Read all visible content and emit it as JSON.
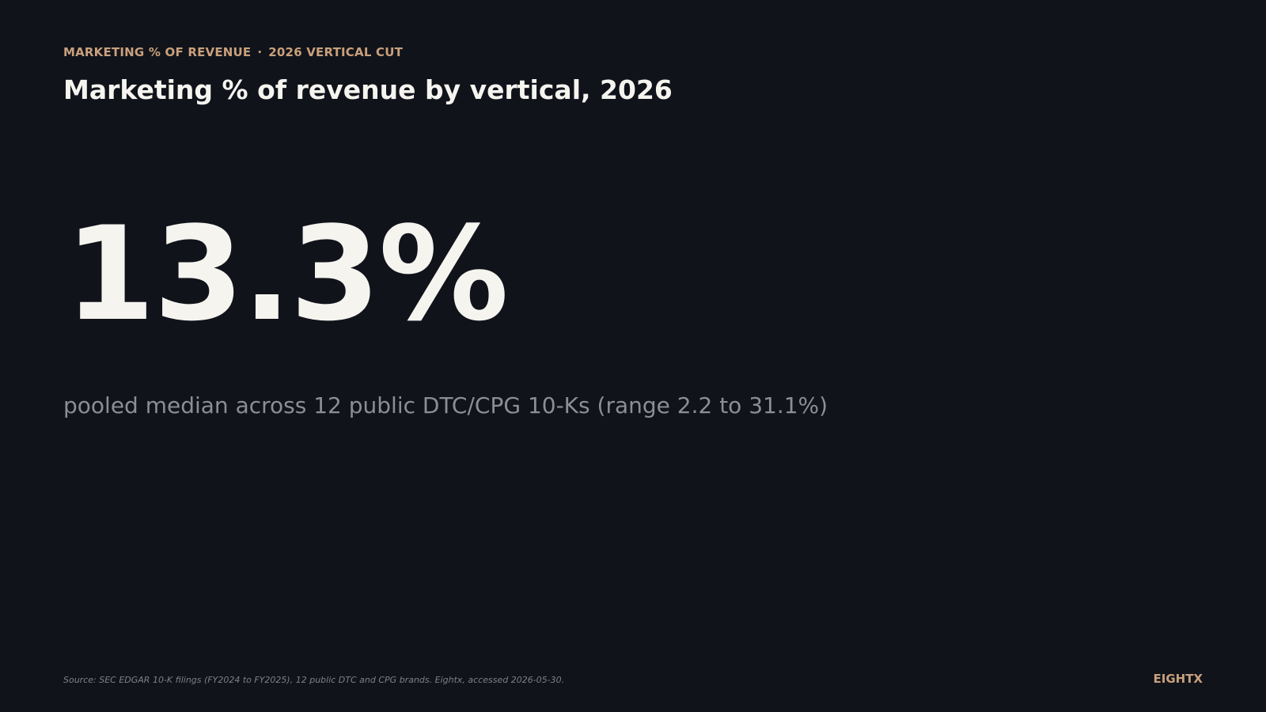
{
  "colors": {
    "background": "#10131a",
    "accent": "#c9a07c",
    "headline": "#f5f4ef",
    "muted": "#8c8e95",
    "source": "#7d8088"
  },
  "eyebrow": {
    "left": "MARKETING % OF REVENUE",
    "separator": "·",
    "right": "2026 VERTICAL CUT"
  },
  "title": "Marketing % of revenue by vertical, 2026",
  "chart_data": {
    "type": "table",
    "value": "13.3%",
    "caption": "pooled median across 12 public DTC/CPG 10-Ks (range 2.2 to 31.1%)"
  },
  "footer": {
    "source": "Source: SEC EDGAR 10-K filings (FY2024 to FY2025), 12 public DTC and CPG brands. Eightx, accessed 2026-05-30.",
    "brand": "EIGHTX"
  }
}
